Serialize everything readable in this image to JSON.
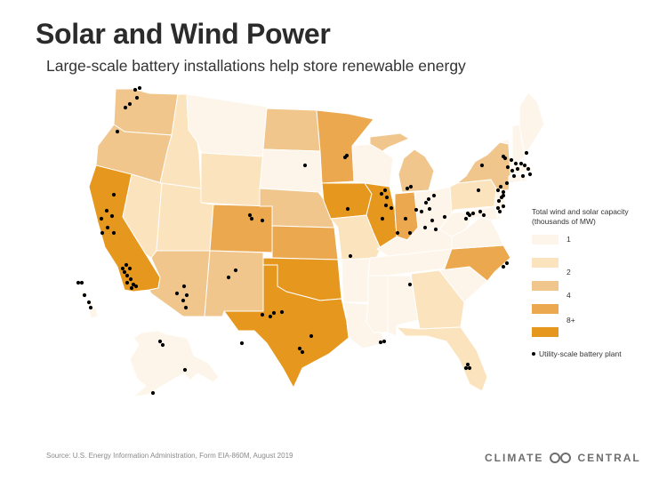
{
  "title": "Solar and Wind Power",
  "subtitle": "Large-scale battery installations help store renewable energy",
  "legend": {
    "title_line1": "Total wind and solar capacity",
    "title_line2": "(thousands of MW)",
    "items": [
      {
        "label": "1",
        "color": "#fdf5e9"
      },
      {
        "label": "2",
        "color": "#fbe3bd"
      },
      {
        "label": "4",
        "color": "#f0c68c"
      },
      {
        "label": "",
        "color": "#eba84f"
      },
      {
        "label": "8+",
        "color": "#e5971e"
      }
    ],
    "dot_label": "Utility-scale battery plant"
  },
  "source": "Source: U.S. Energy Information Administration, Form EIA-860M, August 2019",
  "brand": {
    "left": "CLIMATE",
    "right": "CENTRAL"
  },
  "colors": {
    "c1": "#fdf5e9",
    "c2": "#fbe3bd",
    "c3": "#f0c68c",
    "c4": "#eba84f",
    "c5": "#e5971e",
    "border": "#ffffff",
    "dot": "#000000"
  }
}
